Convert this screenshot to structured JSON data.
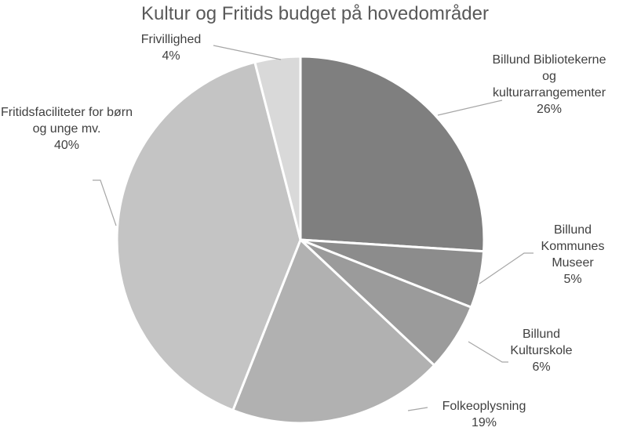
{
  "chart_data": {
    "type": "pie",
    "title": "Kultur og Fritids budget på hovedområder",
    "categories": [
      "Billund Bibliotekerne og kulturarrangementer",
      "Billund Kommunes Museer",
      "Billund Kulturskole",
      "Folkeoplysning",
      "Fritidsfaciliteter for børn og unge mv.",
      "Frivillighed"
    ],
    "values": [
      26,
      5,
      6,
      19,
      40,
      4
    ],
    "value_labels": [
      "26%",
      "5%",
      "6%",
      "19%",
      "40%",
      "4%"
    ],
    "colors": [
      "#7f7f7f",
      "#8c8c8c",
      "#9b9b9b",
      "#b1b1b1",
      "#c4c4c4",
      "#d9d9d9"
    ]
  }
}
